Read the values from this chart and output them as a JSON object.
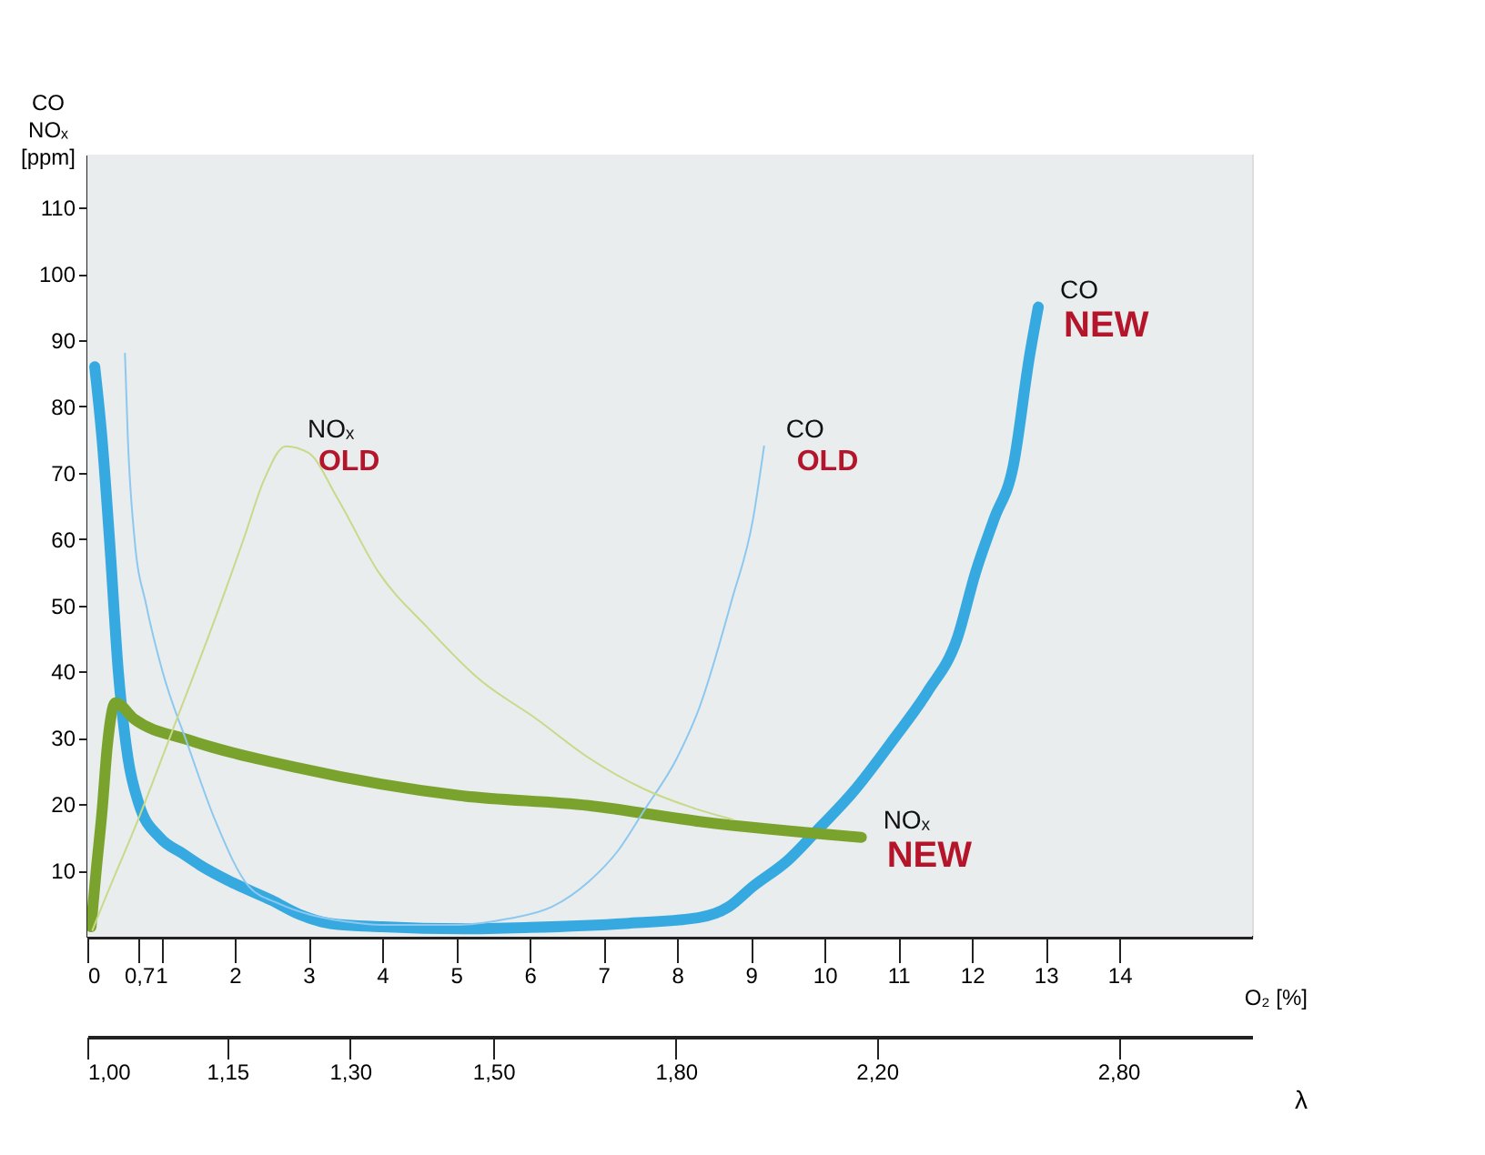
{
  "chart_data": {
    "type": "line",
    "xlabel": "O₂ [%]",
    "ylabel": "CO\nNOₓ\n[ppm]",
    "x2label": "λ",
    "xlim": [
      0,
      15.8
    ],
    "ylim": [
      0,
      118
    ],
    "xticks": [
      0,
      {
        "value": 0.7,
        "label": "0,7"
      },
      1,
      2,
      3,
      4,
      5,
      6,
      7,
      8,
      9,
      10,
      11,
      12,
      13,
      14
    ],
    "yticks": [
      10,
      20,
      30,
      40,
      50,
      60,
      70,
      80,
      90,
      100,
      110
    ],
    "x2lim": [
      1.0,
      3.2
    ],
    "log": "x2",
    "x2ticks": [
      {
        "value": 1.0,
        "label": "1,00"
      },
      {
        "value": 1.15,
        "label": "1,15"
      },
      {
        "value": 1.3,
        "label": "1,30"
      },
      {
        "value": 1.5,
        "label": "1,50"
      },
      {
        "value": 1.8,
        "label": "1,80"
      },
      {
        "value": 2.2,
        "label": "2,20"
      },
      {
        "value": 2.8,
        "label": "2,80"
      }
    ],
    "series": [
      {
        "color": "#36a9e1",
        "x": [
          0.1,
          0.2,
          0.3,
          0.42,
          0.55,
          0.7,
          0.98,
          1.3,
          1.53,
          2.0,
          2.5,
          2.87,
          3.3,
          4,
          5.1,
          6,
          7.3,
          8.3,
          8.7,
          9.03,
          9.5,
          9.87,
          10.4,
          10.95,
          11.4,
          11.8,
          12.05,
          12.3,
          12.56,
          12.78,
          12.9
        ],
        "values": [
          86,
          75,
          60,
          40,
          27,
          20,
          15,
          12.5,
          10.8,
          8,
          5.5,
          3.4,
          2,
          1.5,
          1.2,
          1.4,
          2,
          2.9,
          4.5,
          7.6,
          11.5,
          15.7,
          22,
          30,
          37,
          45,
          55,
          63,
          71,
          87.5,
          95
        ]
      },
      {
        "color": "#7aa32e",
        "x": [
          0.05,
          0.12,
          0.2,
          0.27,
          0.38,
          0.64,
          1.37,
          2.85,
          5.05,
          6.8,
          8.3,
          10.5
        ],
        "values": [
          1.5,
          10,
          19,
          28.7,
          35.3,
          32.8,
          29.7,
          25.5,
          21.3,
          19.8,
          17.4,
          15
        ]
      },
      {
        "color": "#8cc8f0",
        "x": [
          0.51,
          0.55,
          0.64,
          0.8,
          1.02,
          1.37,
          1.74,
          2.19,
          2.6,
          3.0,
          3.5,
          4,
          5,
          5.7,
          6.3,
          6.8,
          7.2,
          7.55,
          8.0,
          8.3,
          8.74,
          9.03,
          9.18
        ],
        "values": [
          88,
          75,
          60,
          50,
          40,
          28.7,
          17.4,
          7.6,
          5,
          3.4,
          2.3,
          1.8,
          1.8,
          2.7,
          4.5,
          8.3,
          13,
          19,
          27,
          34.5,
          50.7,
          63,
          74
        ]
      },
      {
        "color": "#c8d98a",
        "x": [
          0.07,
          0.13,
          0.7,
          1.24,
          1.7,
          2.12,
          2.4,
          2.69,
          3.0,
          3.4,
          3.95,
          4.6,
          5.3,
          6.1,
          6.8,
          7.55,
          8.2,
          8.75
        ],
        "values": [
          1,
          2.7,
          18,
          33.6,
          47,
          60,
          69,
          74,
          73,
          66,
          55,
          46.8,
          39,
          32.8,
          27,
          22.3,
          19.5,
          17.7
        ]
      }
    ],
    "annotations": [
      {
        "text": "CO NEW",
        "x": 12.9,
        "y": 95
      },
      {
        "text": "NOₓ NEW",
        "x": 10.5,
        "y": 15
      },
      {
        "text": "CO OLD",
        "x": 9.18,
        "y": 74
      },
      {
        "text": "NOₓ OLD",
        "x": 2.69,
        "y": 74
      }
    ]
  }
}
